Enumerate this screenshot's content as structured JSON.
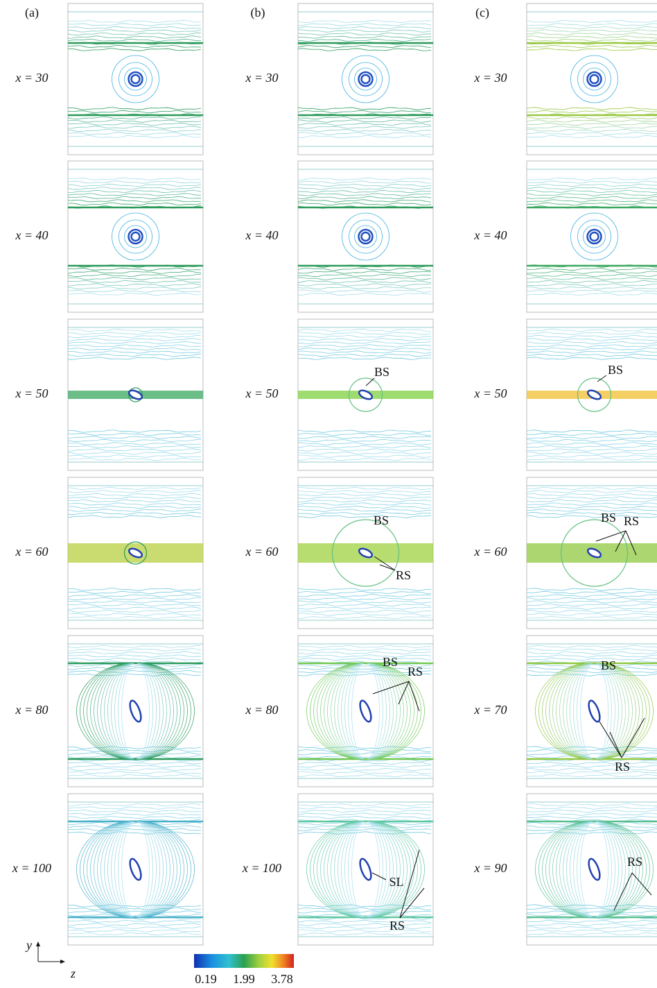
{
  "columns": [
    {
      "label": "(a)",
      "panels": [
        {
          "x_label": "x = 30",
          "annotations": []
        },
        {
          "x_label": "x = 40",
          "annotations": []
        },
        {
          "x_label": "x = 50",
          "annotations": []
        },
        {
          "x_label": "x = 60",
          "annotations": []
        },
        {
          "x_label": "x = 80",
          "annotations": []
        },
        {
          "x_label": "x = 100",
          "annotations": []
        }
      ]
    },
    {
      "label": "(b)",
      "panels": [
        {
          "x_label": "x = 30",
          "annotations": []
        },
        {
          "x_label": "x = 40",
          "annotations": []
        },
        {
          "x_label": "x = 50",
          "annotations": [
            "BS"
          ]
        },
        {
          "x_label": "x = 60",
          "annotations": [
            "BS",
            "RS"
          ]
        },
        {
          "x_label": "x = 80",
          "annotations": [
            "BS",
            "RS"
          ]
        },
        {
          "x_label": "x = 100",
          "annotations": [
            "SL",
            "RS"
          ]
        }
      ]
    },
    {
      "label": "(c)",
      "panels": [
        {
          "x_label": "x = 30",
          "annotations": []
        },
        {
          "x_label": "x = 40",
          "annotations": []
        },
        {
          "x_label": "x = 50",
          "annotations": [
            "BS"
          ]
        },
        {
          "x_label": "x = 60",
          "annotations": [
            "BS",
            "RS"
          ]
        },
        {
          "x_label": "x = 70",
          "annotations": [
            "BS",
            "RS"
          ]
        },
        {
          "x_label": "x = 90",
          "annotations": [
            "RS"
          ]
        }
      ]
    }
  ],
  "axes": {
    "vertical": "y",
    "horizontal": "z"
  },
  "colorbar": {
    "ticks": [
      0.19,
      1.99,
      3.78
    ]
  }
}
